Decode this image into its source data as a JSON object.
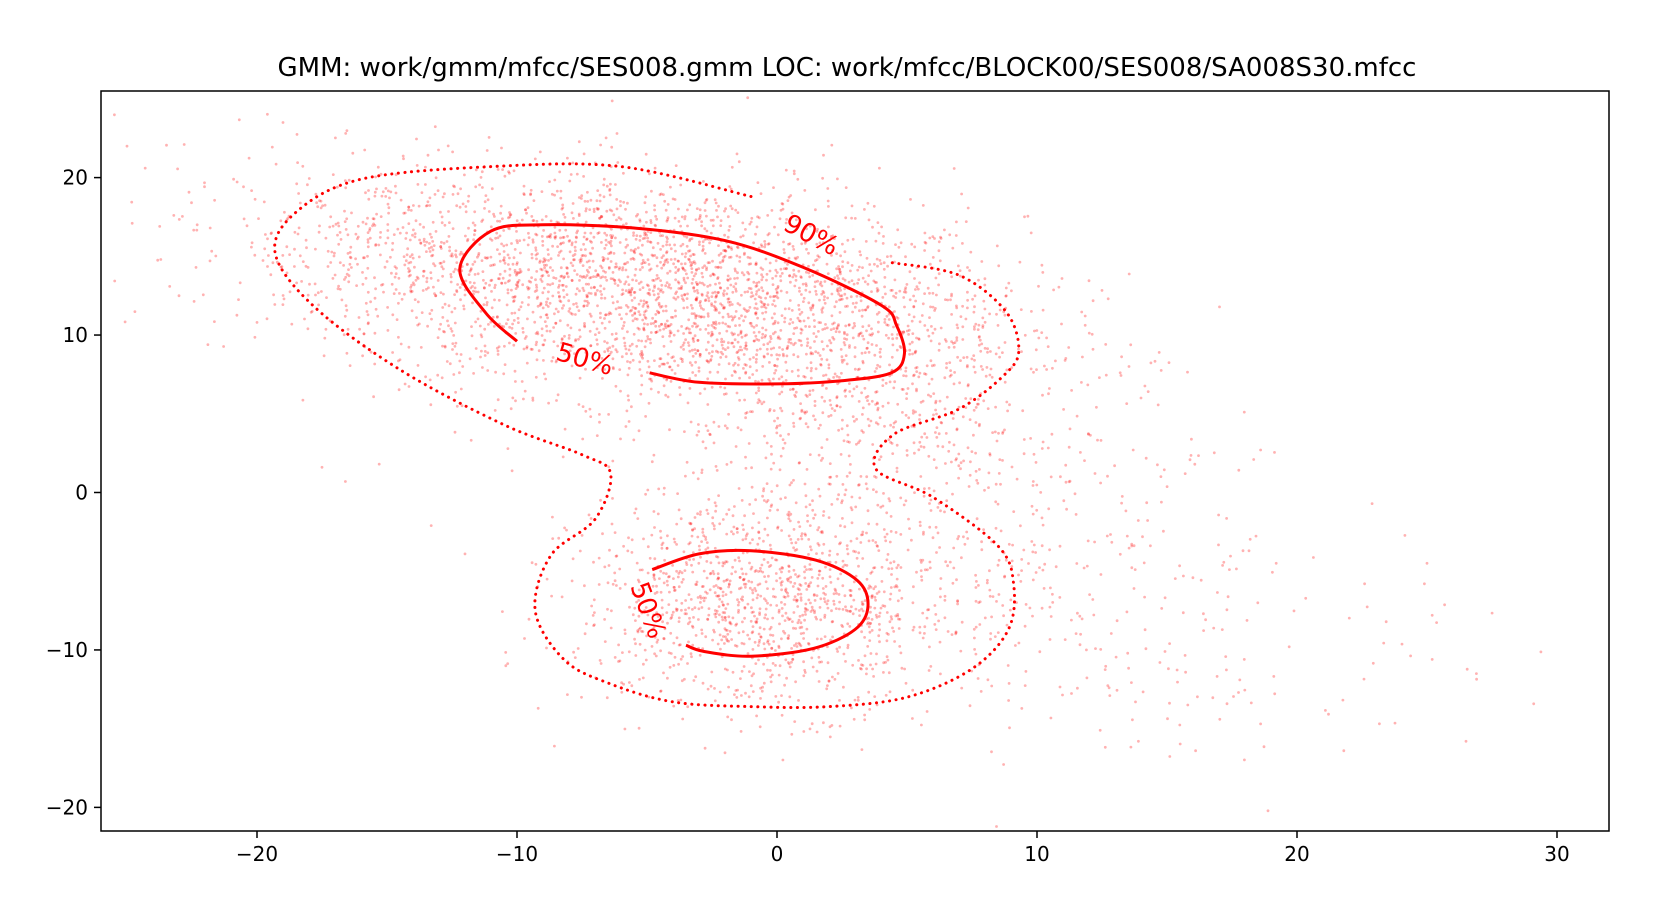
{
  "chart_data": {
    "type": "scatter",
    "title": "GMM: work/gmm/mfcc/SES008.gmm  LOC: work/mfcc/BLOCK00/SES008/SA008S30.mfcc",
    "xlabel": "",
    "ylabel": "",
    "xlim": [
      -26,
      32
    ],
    "ylim": [
      -21.5,
      25.5
    ],
    "x_ticks": [
      -20,
      -10,
      0,
      10,
      20,
      30
    ],
    "x_tick_labels": [
      "−20",
      "−10",
      "0",
      "10",
      "20",
      "30"
    ],
    "y_ticks": [
      -20,
      -10,
      0,
      10,
      20
    ],
    "y_tick_labels": [
      "−20",
      "−10",
      "0",
      "10",
      "20"
    ],
    "grid": false,
    "point_color": "#ff0000",
    "point_alpha": 0.3,
    "scatter_clusters": [
      {
        "center": [
          -3.5,
          12.5
        ],
        "sd": [
          6.5,
          3.8
        ],
        "rho": -0.3,
        "n": 2800
      },
      {
        "center": [
          -0.5,
          -7.0
        ],
        "sd": [
          3.6,
          3.4
        ],
        "rho": 0.0,
        "n": 1200
      },
      {
        "center": [
          -14.0,
          15.0
        ],
        "sd": [
          4.5,
          2.8
        ],
        "rho": -0.2,
        "n": 400
      },
      {
        "center": [
          8.0,
          -4.0
        ],
        "sd": [
          6.0,
          5.5
        ],
        "rho": -0.4,
        "n": 350
      },
      {
        "center": [
          4.0,
          4.0
        ],
        "sd": [
          4.0,
          3.0
        ],
        "rho": -0.2,
        "n": 300
      },
      {
        "center": [
          14.0,
          -8.0
        ],
        "sd": [
          7.0,
          4.5
        ],
        "rho": -0.3,
        "n": 110
      }
    ],
    "outlier_points": [
      [
        -24.3,
        20.6
      ],
      [
        -24.8,
        17.1
      ],
      [
        -23.7,
        14.8
      ],
      [
        -23.0,
        12.5
      ],
      [
        -22.8,
        22.1
      ],
      [
        -23.2,
        17.6
      ],
      [
        -22.3,
        17.0
      ],
      [
        -21.8,
        16.8
      ],
      [
        -20.9,
        19.9
      ],
      [
        -20.0,
        10.8
      ],
      [
        -19.0,
        23.5
      ],
      [
        -15.3,
        1.8
      ],
      [
        -16.6,
        0.7
      ],
      [
        -13.3,
        -2.1
      ],
      [
        -12.0,
        -3.9
      ],
      [
        18.6,
        2.7
      ],
      [
        22.6,
        -5.8
      ],
      [
        25.0,
        -4.5
      ],
      [
        25.2,
        -7.8
      ],
      [
        25.2,
        -10.6
      ],
      [
        26.9,
        -11.5
      ],
      [
        26.5,
        -15.8
      ],
      [
        21.8,
        -16.4
      ],
      [
        19.7,
        -9.8
      ],
      [
        18.6,
        -14.7
      ],
      [
        16.1,
        -16.4
      ],
      [
        15.8,
        -13.5
      ],
      [
        13.9,
        -15.8
      ],
      [
        17.8,
        -11.9
      ],
      [
        19.2,
        -4.5
      ],
      [
        17.4,
        -4.9
      ],
      [
        16.4,
        -7.7
      ],
      [
        15.1,
        -9.6
      ],
      [
        10.9,
        1.0
      ],
      [
        14.0,
        6.0
      ],
      [
        13.2,
        7.6
      ],
      [
        12.4,
        7.3
      ],
      [
        14.7,
        8.9
      ],
      [
        13.7,
        2.7
      ],
      [
        15.7,
        1.2
      ],
      [
        12.8,
        -12.9
      ],
      [
        11.9,
        -10.0
      ],
      [
        -25.0,
        22.0
      ],
      [
        -17.5,
        1.6
      ],
      [
        24.9,
        -5.8
      ]
    ],
    "contours": [
      {
        "level": "90%",
        "style": "dotted",
        "color": "#ff0000",
        "segments": [
          [
            [
              -1.0,
              18.8
            ],
            [
              -6.0,
              20.7
            ],
            [
              -11.0,
              20.7
            ],
            [
              -16.0,
              19.9
            ],
            [
              -18.5,
              17.8
            ],
            [
              -19.3,
              15.2
            ],
            [
              -17.8,
              11.8
            ],
            [
              -14.5,
              7.8
            ],
            [
              -10.5,
              4.3
            ],
            [
              -7.5,
              2.4
            ],
            [
              -6.4,
              1.2
            ],
            [
              -7.0,
              -1.7
            ],
            [
              -8.7,
              -4.0
            ],
            [
              -9.3,
              -7.5
            ],
            [
              -8.2,
              -10.6
            ],
            [
              -6.5,
              -12.1
            ],
            [
              -4.0,
              -13.3
            ],
            [
              -1.0,
              -13.6
            ],
            [
              2.0,
              -13.6
            ],
            [
              5.0,
              -13.0
            ],
            [
              7.5,
              -11.2
            ],
            [
              8.9,
              -8.7
            ],
            [
              9.1,
              -5.8
            ],
            [
              8.5,
              -3.4
            ],
            [
              6.0,
              -0.3
            ],
            [
              3.8,
              1.5
            ],
            [
              4.5,
              3.7
            ],
            [
              7.0,
              5.3
            ],
            [
              8.7,
              7.4
            ],
            [
              9.3,
              9.0
            ],
            [
              8.8,
              11.5
            ],
            [
              7.0,
              13.8
            ],
            [
              4.4,
              14.6
            ]
          ]
        ]
      },
      {
        "level": "50%",
        "style": "solid",
        "color": "#ff0000",
        "segments": [
          [
            [
              -10.0,
              9.6
            ],
            [
              -11.2,
              11.4
            ],
            [
              -12.2,
              14.2
            ],
            [
              -11.0,
              16.6
            ],
            [
              -9.0,
              17.0
            ],
            [
              -5.5,
              16.8
            ],
            [
              -2.0,
              16.0
            ],
            [
              1.0,
              14.3
            ],
            [
              4.0,
              11.9
            ],
            [
              4.6,
              10.6
            ],
            [
              4.9,
              8.8
            ],
            [
              4.4,
              7.6
            ],
            [
              2.5,
              7.1
            ],
            [
              0.0,
              6.9
            ],
            [
              -3.0,
              7.0
            ],
            [
              -4.9,
              7.6
            ]
          ]
        ]
      },
      {
        "level": "50%",
        "style": "solid",
        "color": "#ff0000",
        "segments": [
          [
            [
              -4.8,
              -4.9
            ],
            [
              -3.0,
              -3.9
            ],
            [
              -1.0,
              -3.7
            ],
            [
              1.5,
              -4.3
            ],
            [
              3.1,
              -5.6
            ],
            [
              3.5,
              -7.2
            ],
            [
              3.0,
              -8.7
            ],
            [
              1.4,
              -9.9
            ],
            [
              -1.0,
              -10.4
            ],
            [
              -2.8,
              -10.1
            ],
            [
              -3.5,
              -9.7
            ]
          ]
        ]
      }
    ],
    "contour_labels": [
      {
        "text": "90%",
        "x": 1.3,
        "y": 16.3,
        "rotation": 28
      },
      {
        "text": "50%",
        "x": -7.4,
        "y": 8.4,
        "rotation": 16
      },
      {
        "text": "50%",
        "x": -5.0,
        "y": -7.5,
        "rotation": 70
      }
    ]
  }
}
